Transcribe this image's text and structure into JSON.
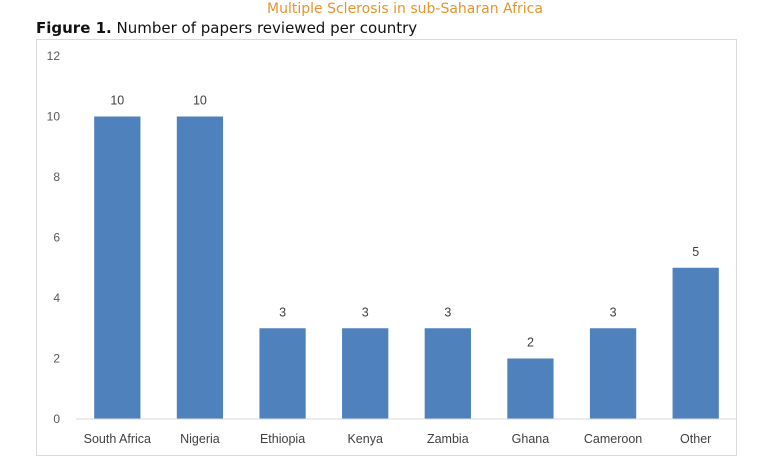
{
  "header": {
    "running_title": "Multiple Sclerosis in sub-Saharan Africa"
  },
  "caption": {
    "lead": "Figure 1.",
    "text": " Number of papers reviewed per country"
  },
  "colors": {
    "bar": "#4f81bd",
    "header": "#e6942e",
    "axis": "#d9d9d9"
  },
  "chart_data": {
    "type": "bar",
    "title": "Number of papers reviewed per country",
    "categories": [
      "South Africa",
      "Nigeria",
      "Ethiopia",
      "Kenya",
      "Zambia",
      "Ghana",
      "Cameroon",
      "Other"
    ],
    "values": [
      10,
      10,
      3,
      3,
      3,
      2,
      3,
      5
    ],
    "xlabel": "",
    "ylabel": "",
    "ylim": [
      0,
      12
    ],
    "yticks": [
      0,
      2,
      4,
      6,
      8,
      10,
      12
    ],
    "grid": false,
    "legend": "none",
    "data_labels": true
  }
}
